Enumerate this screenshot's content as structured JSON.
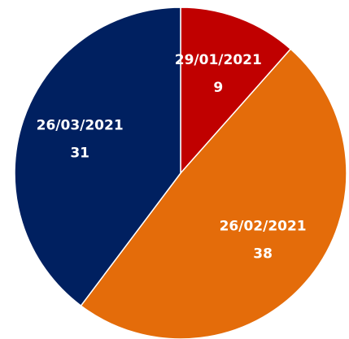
{
  "chart_data": {
    "type": "pie",
    "categories": [
      "29/01/2021",
      "26/02/2021",
      "26/03/2021"
    ],
    "values": [
      9,
      38,
      31
    ],
    "colors": [
      "#c00000",
      "#e46c0a",
      "#002060"
    ]
  }
}
